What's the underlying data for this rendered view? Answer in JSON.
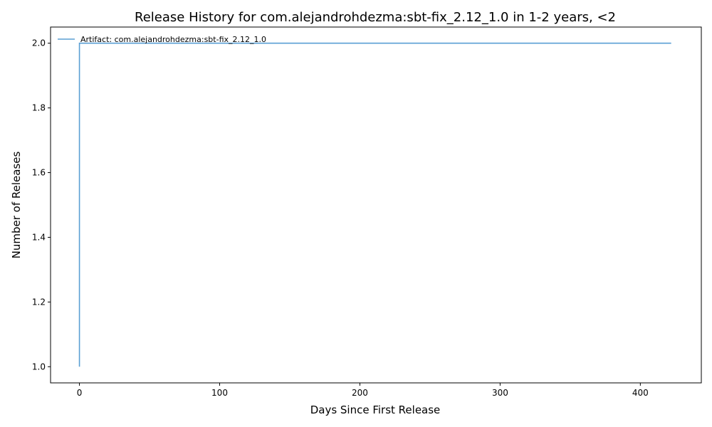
{
  "chart_data": {
    "type": "line",
    "title": "Release History for com.alejandrohdezma:sbt-fix_2.12_1.0 in 1-2 years, <2",
    "xlabel": "Days Since First Release",
    "ylabel": "Number of Releases",
    "xlim": [
      -20.6,
      443.5
    ],
    "ylim": [
      0.95,
      2.05
    ],
    "xticks": [
      0,
      100,
      200,
      300,
      400
    ],
    "xtick_labels": [
      "0",
      "100",
      "200",
      "300",
      "400"
    ],
    "yticks": [
      1.0,
      1.2,
      1.4,
      1.6,
      1.8,
      2.0
    ],
    "ytick_labels": [
      "1.0",
      "1.2",
      "1.4",
      "1.6",
      "1.8",
      "2.0"
    ],
    "grid": false,
    "legend_position": "top-left",
    "series": [
      {
        "name": "Artifact: com.alejandrohdezma:sbt-fix_2.12_1.0",
        "color": "#5a9fd4",
        "drawstyle": "steps-post",
        "x": [
          0,
          0,
          422
        ],
        "y": [
          1,
          2,
          2
        ]
      }
    ]
  }
}
